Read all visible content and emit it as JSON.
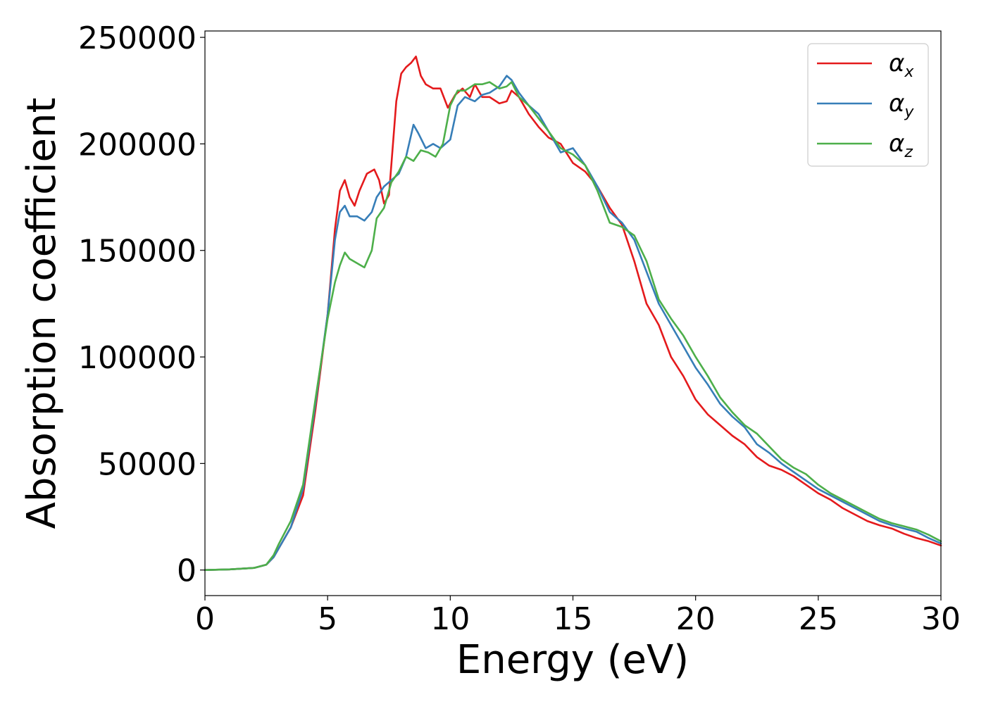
{
  "chart_data": {
    "type": "line",
    "title": "",
    "xlabel": "Energy (eV)",
    "ylabel": "Absorption coefficient",
    "xlim": [
      0,
      30
    ],
    "ylim": [
      -12000,
      253000
    ],
    "xticks": [
      0,
      5,
      10,
      15,
      20,
      25,
      30
    ],
    "xtick_labels": [
      "0",
      "5",
      "10",
      "15",
      "20",
      "25",
      "30"
    ],
    "yticks": [
      0,
      50000,
      100000,
      150000,
      200000,
      250000
    ],
    "ytick_labels": [
      "0",
      "50000",
      "100000",
      "150000",
      "200000",
      "250000"
    ],
    "grid": false,
    "legend_position": "top-right",
    "series": [
      {
        "name": "α_x",
        "symbol": "α",
        "subscript": "x",
        "color": "#e41a1c",
        "x": [
          0,
          1,
          2,
          2.5,
          2.8,
          3,
          3.5,
          4,
          4.5,
          5,
          5.3,
          5.5,
          5.7,
          5.9,
          6.1,
          6.3,
          6.6,
          6.9,
          7.1,
          7.3,
          7.5,
          7.8,
          8.0,
          8.2,
          8.4,
          8.6,
          8.8,
          9.0,
          9.3,
          9.6,
          9.9,
          10.2,
          10.5,
          10.8,
          11.0,
          11.3,
          11.6,
          12.0,
          12.3,
          12.5,
          12.8,
          13.2,
          13.6,
          14.0,
          14.5,
          15.0,
          15.5,
          16.0,
          16.5,
          17.0,
          17.5,
          18.0,
          18.5,
          19.0,
          19.5,
          20.0,
          20.5,
          21.0,
          21.5,
          22.0,
          22.5,
          23.0,
          23.5,
          24.0,
          24.5,
          25.0,
          25.5,
          26.0,
          26.5,
          27.0,
          27.5,
          28.0,
          28.5,
          29.0,
          29.5,
          30.0
        ],
        "y": [
          0,
          300,
          1000,
          2500,
          6000,
          10000,
          20000,
          35000,
          75000,
          120000,
          160000,
          178000,
          183000,
          175000,
          171000,
          178000,
          186000,
          188000,
          183000,
          172000,
          176000,
          220000,
          233000,
          236000,
          238000,
          241000,
          232000,
          228000,
          226000,
          226000,
          217000,
          223000,
          226000,
          222000,
          228000,
          222000,
          222000,
          219000,
          220000,
          225000,
          222000,
          214000,
          208000,
          203000,
          200000,
          191000,
          187000,
          180000,
          170000,
          162000,
          145000,
          125000,
          115000,
          100000,
          91000,
          80000,
          73000,
          68000,
          63000,
          59000,
          53000,
          49000,
          47000,
          44000,
          40000,
          36000,
          33000,
          29000,
          26000,
          23000,
          21000,
          19500,
          17000,
          15000,
          13500,
          11500
        ]
      },
      {
        "name": "α_y",
        "symbol": "α",
        "subscript": "y",
        "color": "#377eb8",
        "x": [
          0,
          1,
          2,
          2.5,
          2.8,
          3,
          3.5,
          4,
          4.5,
          5,
          5.3,
          5.5,
          5.7,
          5.9,
          6.2,
          6.5,
          6.8,
          7.0,
          7.3,
          7.6,
          7.9,
          8.2,
          8.5,
          8.7,
          9.0,
          9.3,
          9.6,
          10.0,
          10.3,
          10.6,
          11.0,
          11.3,
          11.6,
          12.0,
          12.3,
          12.5,
          12.8,
          13.2,
          13.6,
          14.0,
          14.5,
          15.0,
          15.5,
          16.0,
          16.5,
          17.0,
          17.5,
          18.0,
          18.5,
          19.0,
          19.5,
          20.0,
          20.5,
          21.0,
          21.5,
          22.0,
          22.5,
          23.0,
          23.5,
          24.0,
          24.5,
          25.0,
          25.5,
          26.0,
          26.5,
          27.0,
          27.5,
          28.0,
          28.5,
          29.0,
          29.5,
          30.0
        ],
        "y": [
          0,
          300,
          1000,
          2500,
          6000,
          10000,
          20000,
          38000,
          78000,
          120000,
          155000,
          168000,
          171000,
          166000,
          166000,
          164000,
          168000,
          175000,
          180000,
          183000,
          186000,
          194000,
          209000,
          205000,
          198000,
          200000,
          198000,
          202000,
          218000,
          222000,
          220000,
          223000,
          224000,
          227000,
          232000,
          230000,
          224000,
          218000,
          214000,
          206000,
          196000,
          198000,
          190000,
          180000,
          168000,
          163000,
          155000,
          140000,
          125000,
          115000,
          105000,
          95000,
          87000,
          78000,
          72000,
          67000,
          59000,
          55000,
          50000,
          46000,
          42000,
          38000,
          35000,
          32000,
          29000,
          26000,
          23000,
          21000,
          19500,
          18000,
          15000,
          12500
        ]
      },
      {
        "name": "α_z",
        "symbol": "α",
        "subscript": "z",
        "color": "#4daf4a",
        "x": [
          0,
          1,
          2,
          2.5,
          2.8,
          3,
          3.5,
          4,
          4.5,
          5,
          5.3,
          5.5,
          5.7,
          5.9,
          6.2,
          6.5,
          6.8,
          7.0,
          7.3,
          7.6,
          7.9,
          8.2,
          8.5,
          8.8,
          9.1,
          9.4,
          9.7,
          10.0,
          10.3,
          10.6,
          11.0,
          11.3,
          11.6,
          12.0,
          12.3,
          12.5,
          12.8,
          13.2,
          13.6,
          14.0,
          14.5,
          15.0,
          15.5,
          16.0,
          16.5,
          17.0,
          17.5,
          18.0,
          18.5,
          19.0,
          19.5,
          20.0,
          20.5,
          21.0,
          21.5,
          22.0,
          22.5,
          23.0,
          23.5,
          24.0,
          24.5,
          25.0,
          25.5,
          26.0,
          26.5,
          27.0,
          27.5,
          28.0,
          28.5,
          29.0,
          29.5,
          30.0
        ],
        "y": [
          0,
          300,
          1000,
          2500,
          7000,
          12000,
          23000,
          40000,
          80000,
          118000,
          135000,
          143000,
          149000,
          146000,
          144000,
          142000,
          150000,
          165000,
          170000,
          182000,
          187000,
          194000,
          192000,
          197000,
          196000,
          194000,
          200000,
          218000,
          225000,
          225000,
          228000,
          228000,
          229000,
          226000,
          227000,
          229000,
          222000,
          218000,
          212000,
          206000,
          198000,
          195000,
          190000,
          178000,
          163000,
          161000,
          157000,
          145000,
          127000,
          118000,
          110000,
          100000,
          91000,
          81000,
          74000,
          68000,
          64000,
          58000,
          52000,
          48000,
          45000,
          40000,
          36000,
          33000,
          30000,
          27000,
          24000,
          22000,
          20500,
          19000,
          16500,
          13500
        ]
      }
    ]
  }
}
